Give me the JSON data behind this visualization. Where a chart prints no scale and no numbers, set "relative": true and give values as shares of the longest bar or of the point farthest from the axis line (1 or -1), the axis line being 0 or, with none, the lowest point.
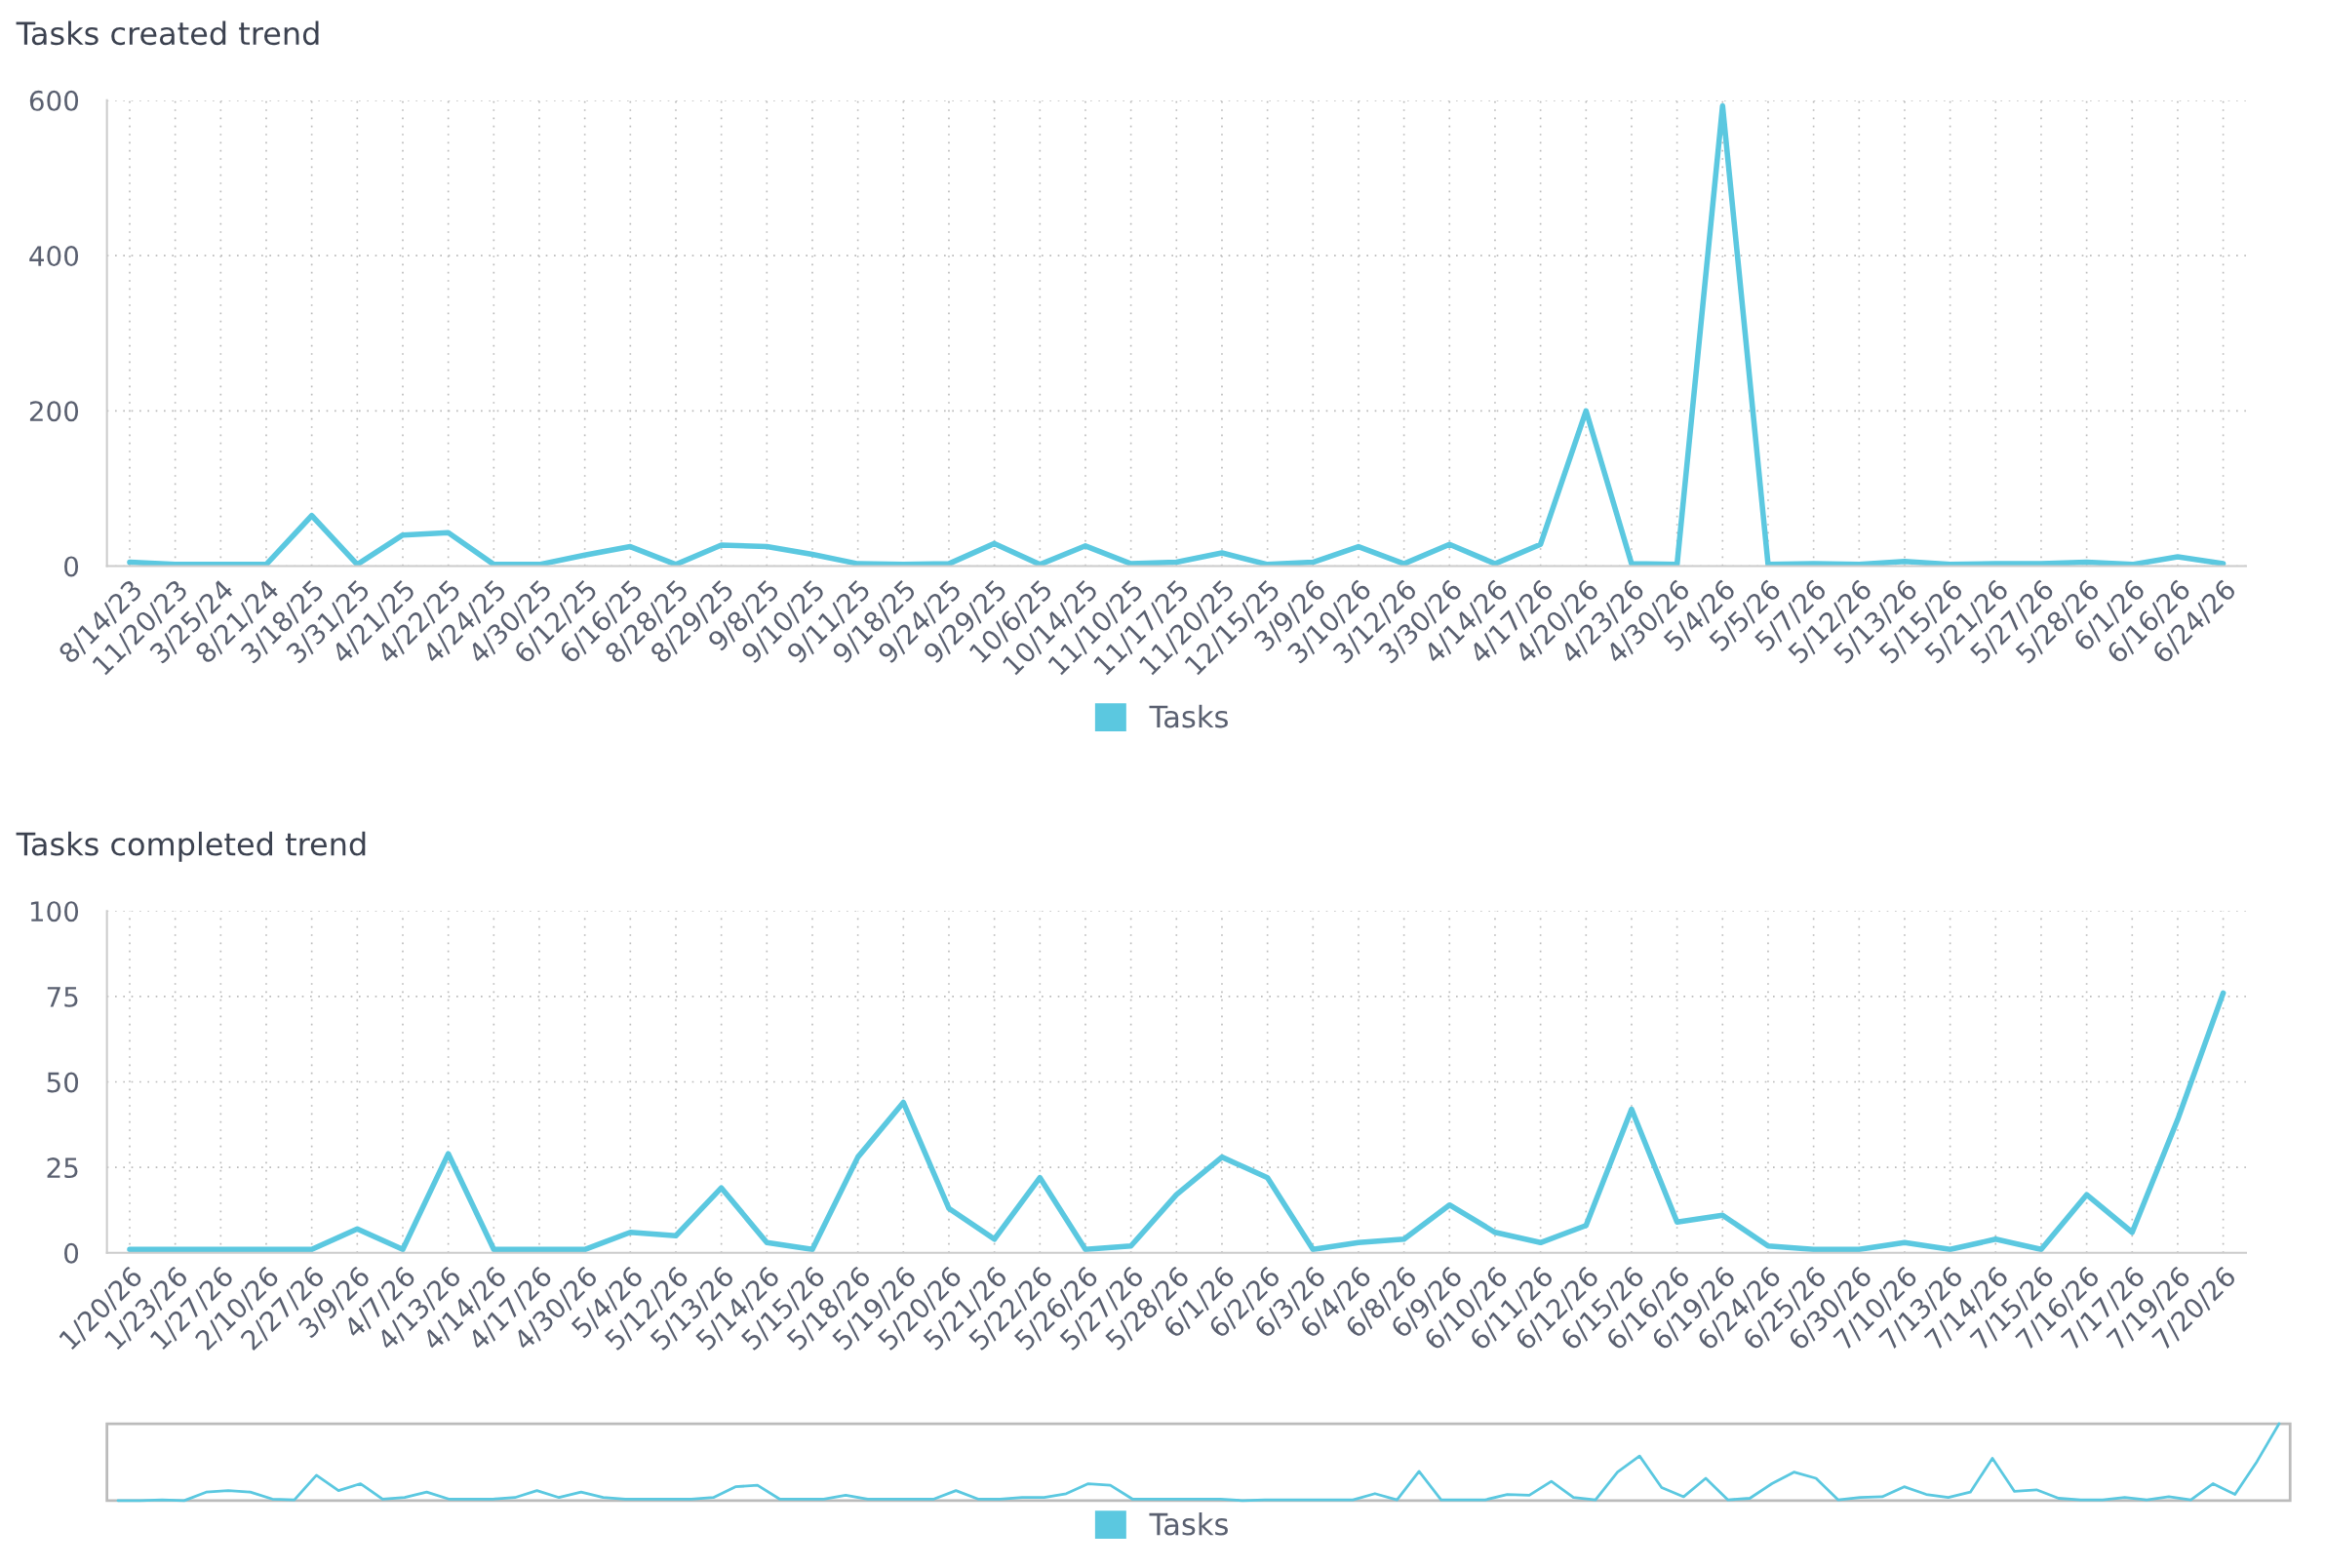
{
  "chart_data": [
    {
      "type": "line",
      "title": "Tasks created trend",
      "categories": [
        "8/14/23",
        "11/20/23",
        "3/25/24",
        "8/21/24",
        "3/18/25",
        "3/31/25",
        "4/21/25",
        "4/22/25",
        "4/24/25",
        "4/30/25",
        "6/12/25",
        "6/16/25",
        "8/28/25",
        "8/29/25",
        "9/8/25",
        "9/10/25",
        "9/11/25",
        "9/18/25",
        "9/24/25",
        "9/29/25",
        "10/6/25",
        "10/14/25",
        "11/10/25",
        "11/17/25",
        "11/20/25",
        "12/15/25",
        "3/9/26",
        "3/10/26",
        "3/12/26",
        "3/30/26",
        "4/14/26",
        "4/17/26",
        "4/20/26",
        "4/23/26",
        "4/30/26",
        "5/4/26",
        "5/5/26",
        "5/7/26",
        "5/12/26",
        "5/13/26",
        "5/15/26",
        "5/21/26",
        "5/27/26",
        "5/28/26",
        "6/1/26",
        "6/16/26",
        "6/24/26"
      ],
      "series": [
        {
          "name": "Tasks",
          "color": "#5bc8e0",
          "values": [
            5,
            2,
            2,
            2,
            65,
            2,
            40,
            43,
            2,
            2,
            14,
            25,
            2,
            27,
            25,
            15,
            3,
            2,
            3,
            29,
            2,
            26,
            3,
            5,
            17,
            2,
            5,
            25,
            3,
            28,
            3,
            28,
            200,
            3,
            2,
            593,
            2,
            3,
            2,
            6,
            2,
            3,
            3,
            5,
            2,
            12,
            3
          ]
        }
      ],
      "ylim": [
        0,
        600
      ],
      "yticks": [
        0,
        200,
        400,
        600
      ],
      "grid": true,
      "legend": "bottom",
      "marker": "none",
      "line_style": "solid"
    },
    {
      "type": "line",
      "title": "Tasks completed trend",
      "categories": [
        "1/20/26",
        "1/23/26",
        "1/27/26",
        "2/10/26",
        "2/27/26",
        "3/9/26",
        "4/7/26",
        "4/13/26",
        "4/14/26",
        "4/17/26",
        "4/30/26",
        "5/4/26",
        "5/12/26",
        "5/13/26",
        "5/14/26",
        "5/15/26",
        "5/18/26",
        "5/19/26",
        "5/20/26",
        "5/21/26",
        "5/22/26",
        "5/26/26",
        "5/27/26",
        "5/28/26",
        "6/1/26",
        "6/2/26",
        "6/3/26",
        "6/4/26",
        "6/8/26",
        "6/9/26",
        "6/10/26",
        "6/11/26",
        "6/12/26",
        "6/15/26",
        "6/16/26",
        "6/19/26",
        "6/24/26",
        "6/25/26",
        "6/30/26",
        "7/10/26",
        "7/13/26",
        "7/14/26",
        "7/15/26",
        "7/16/26",
        "7/17/26",
        "7/19/26",
        "7/20/26"
      ],
      "series": [
        {
          "name": "Tasks",
          "color": "#5bc8e0",
          "values": [
            1,
            1,
            1,
            1,
            1,
            7,
            1,
            29,
            1,
            1,
            1,
            6,
            5,
            19,
            3,
            1,
            28,
            44,
            13,
            4,
            22,
            1,
            2,
            17,
            28,
            22,
            1,
            3,
            4,
            14,
            6,
            3,
            8,
            42,
            9,
            11,
            2,
            1,
            1,
            3,
            1,
            4,
            1,
            17,
            6,
            39,
            76
          ]
        }
      ],
      "ylim": [
        0,
        100
      ],
      "yticks": [
        0,
        25,
        50,
        75,
        100
      ],
      "grid": true,
      "legend": "bottom",
      "marker": "none",
      "line_style": "solid"
    },
    {
      "type": "line",
      "relative": true,
      "categories": [
        null,
        null,
        null,
        null,
        null,
        null,
        null,
        null,
        null,
        null,
        null,
        null,
        null,
        null,
        null,
        null,
        null,
        null,
        null,
        null,
        null,
        null,
        null,
        null,
        null,
        null,
        null,
        null,
        null,
        null,
        null,
        null,
        null,
        null,
        null,
        null,
        null,
        null,
        null,
        null,
        null,
        null,
        null,
        null,
        null,
        null,
        null,
        null,
        null,
        null,
        null,
        null,
        null,
        null,
        null,
        null,
        null,
        null,
        null,
        null,
        null,
        null,
        null,
        null,
        null,
        null,
        null,
        null,
        null,
        null,
        null,
        null,
        null,
        null,
        null,
        null,
        null,
        null,
        null,
        null,
        null,
        null,
        null,
        null,
        null,
        null,
        null,
        null,
        null,
        null,
        null,
        null,
        null,
        null,
        null,
        null,
        null,
        null,
        null
      ],
      "series": [
        {
          "color": "#5bc8e0",
          "values": [
            0,
            0,
            0.01,
            0,
            0.11,
            0.13,
            0.11,
            0.02,
            0.01,
            0.33,
            0.13,
            0.22,
            0.02,
            0.04,
            0.11,
            0.02,
            0.02,
            0.02,
            0.04,
            0.13,
            0.04,
            0.11,
            0.04,
            0.02,
            0.02,
            0.02,
            0.02,
            0.04,
            0.18,
            0.2,
            0.02,
            0.02,
            0.02,
            0.07,
            0.02,
            0.02,
            0.02,
            0.02,
            0.13,
            0.02,
            0.02,
            0.04,
            0.04,
            0.09,
            0.22,
            0.2,
            0.02,
            0.02,
            0.02,
            0.02,
            0.02,
            0,
            0.01,
            0.01,
            0.01,
            0.01,
            0.01,
            0.09,
            0.01,
            0.38,
            0.01,
            0.01,
            0.01,
            0.08,
            0.07,
            0.25,
            0.04,
            0.01,
            0.37,
            0.58,
            0.17,
            0.05,
            0.29,
            0.01,
            0.03,
            0.22,
            0.37,
            0.29,
            0.01,
            0.04,
            0.05,
            0.18,
            0.08,
            0.04,
            0.11,
            0.55,
            0.12,
            0.14,
            0.03,
            0.01,
            0.01,
            0.04,
            0.01,
            0.05,
            0.01,
            0.22,
            0.08,
            0.51,
            1
          ]
        }
      ],
      "grid": false,
      "marker": "none",
      "line_style": "solid"
    }
  ]
}
